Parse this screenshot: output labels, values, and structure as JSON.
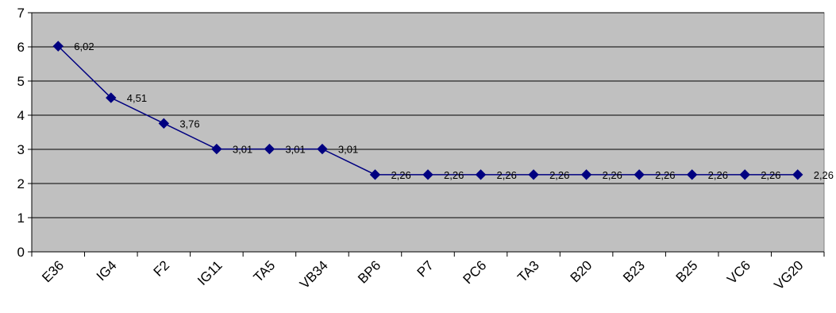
{
  "chart_data": {
    "type": "line",
    "categories": [
      "E36",
      "IG4",
      "F2",
      "IG11",
      "TA5",
      "VB34",
      "BP6",
      "P7",
      "PC6",
      "TA3",
      "B20",
      "B23",
      "B25",
      "VC6",
      "VG20"
    ],
    "series": [
      {
        "values": [
          6.02,
          4.51,
          3.76,
          3.01,
          3.01,
          3.01,
          2.26,
          2.26,
          2.26,
          2.26,
          2.26,
          2.26,
          2.26,
          2.26,
          2.26
        ],
        "labels": [
          "6,02",
          "4,51",
          "3,76",
          "3,01",
          "3,01",
          "3,01",
          "2,26",
          "2,26",
          "2,26",
          "2,26",
          "2,26",
          "2,26",
          "2,26",
          "2,26",
          "2,26"
        ]
      }
    ],
    "ylim": [
      0,
      7
    ],
    "yticks": [
      "0",
      "1",
      "2",
      "3",
      "4",
      "5",
      "6",
      "7"
    ],
    "title": "",
    "xlabel": "",
    "ylabel": "",
    "grid": true,
    "legend": "none",
    "colors": {
      "plot_background": "#c0c0c0",
      "line": "#000080",
      "marker": "#000080",
      "gridline": "#000000",
      "page_background": "#ffffff"
    }
  }
}
